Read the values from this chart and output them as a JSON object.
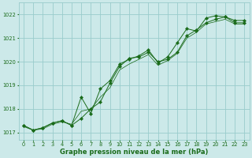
{
  "title": "Graphe pression niveau de la mer (hPa)",
  "bg_color": "#cce9e9",
  "grid_color": "#99cccc",
  "line_color": "#1a6b1a",
  "xlim": [
    -0.5,
    23.5
  ],
  "ylim": [
    1016.7,
    1022.5
  ],
  "yticks": [
    1017,
    1018,
    1019,
    1020,
    1021,
    1022
  ],
  "xticks": [
    0,
    1,
    2,
    3,
    4,
    5,
    6,
    7,
    8,
    9,
    10,
    11,
    12,
    13,
    14,
    15,
    16,
    17,
    18,
    19,
    20,
    21,
    22,
    23
  ],
  "series1_y": [
    1017.3,
    1017.1,
    1017.2,
    1017.4,
    1017.5,
    1017.3,
    1017.6,
    1018.0,
    1018.3,
    1019.1,
    1019.8,
    1020.15,
    1020.2,
    1020.4,
    1020.0,
    1020.1,
    1020.4,
    1021.1,
    1021.35,
    1021.65,
    1021.8,
    1021.9,
    1021.65,
    1021.65
  ],
  "series2_y": [
    1017.3,
    1017.1,
    1017.2,
    1017.4,
    1017.5,
    1017.3,
    1018.5,
    1017.8,
    1018.85,
    1019.2,
    1019.9,
    1020.1,
    1020.25,
    1020.5,
    1019.95,
    1020.2,
    1020.8,
    1021.4,
    1021.3,
    1021.85,
    1021.95,
    1021.9,
    1021.75,
    1021.75
  ],
  "series3_y": [
    1017.25,
    1017.1,
    1017.15,
    1017.35,
    1017.45,
    1017.35,
    1017.9,
    1018.0,
    1018.5,
    1018.9,
    1019.65,
    1019.9,
    1020.1,
    1020.3,
    1019.85,
    1020.05,
    1020.35,
    1021.0,
    1021.25,
    1021.6,
    1021.7,
    1021.8,
    1021.6,
    1021.6
  ],
  "title_fontsize": 6.0,
  "tick_fontsize": 4.8,
  "linewidth": 0.7,
  "markersize": 2.2
}
